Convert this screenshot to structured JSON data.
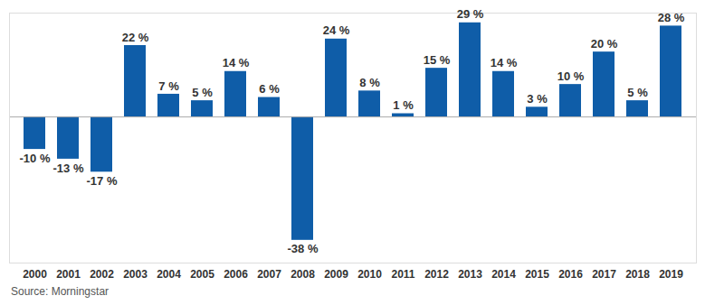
{
  "chart_data": {
    "type": "bar",
    "categories": [
      "2000",
      "2001",
      "2002",
      "2003",
      "2004",
      "2005",
      "2006",
      "2007",
      "2008",
      "2009",
      "2010",
      "2011",
      "2012",
      "2013",
      "2014",
      "2015",
      "2016",
      "2017",
      "2018",
      "2019"
    ],
    "values": [
      -10,
      -13,
      -17,
      22,
      7,
      5,
      14,
      6,
      -38,
      24,
      8,
      1,
      15,
      29,
      14,
      3,
      10,
      20,
      5,
      28
    ],
    "value_labels": [
      "-10 %",
      "-13 %",
      "-17 %",
      "22 %",
      "7 %",
      "5 %",
      "14 %",
      "6 %",
      "-38 %",
      "24 %",
      "8 %",
      "1 %",
      "15 %",
      "29 %",
      "14 %",
      "3 %",
      "10 %",
      "20 %",
      "5 %",
      "28 %"
    ],
    "data_labels": true,
    "color": "#0f5da8",
    "ylim": [
      -45,
      32
    ],
    "yticks": [],
    "tick_labels": "x",
    "grid": false,
    "source": "Source: Morningstar"
  }
}
